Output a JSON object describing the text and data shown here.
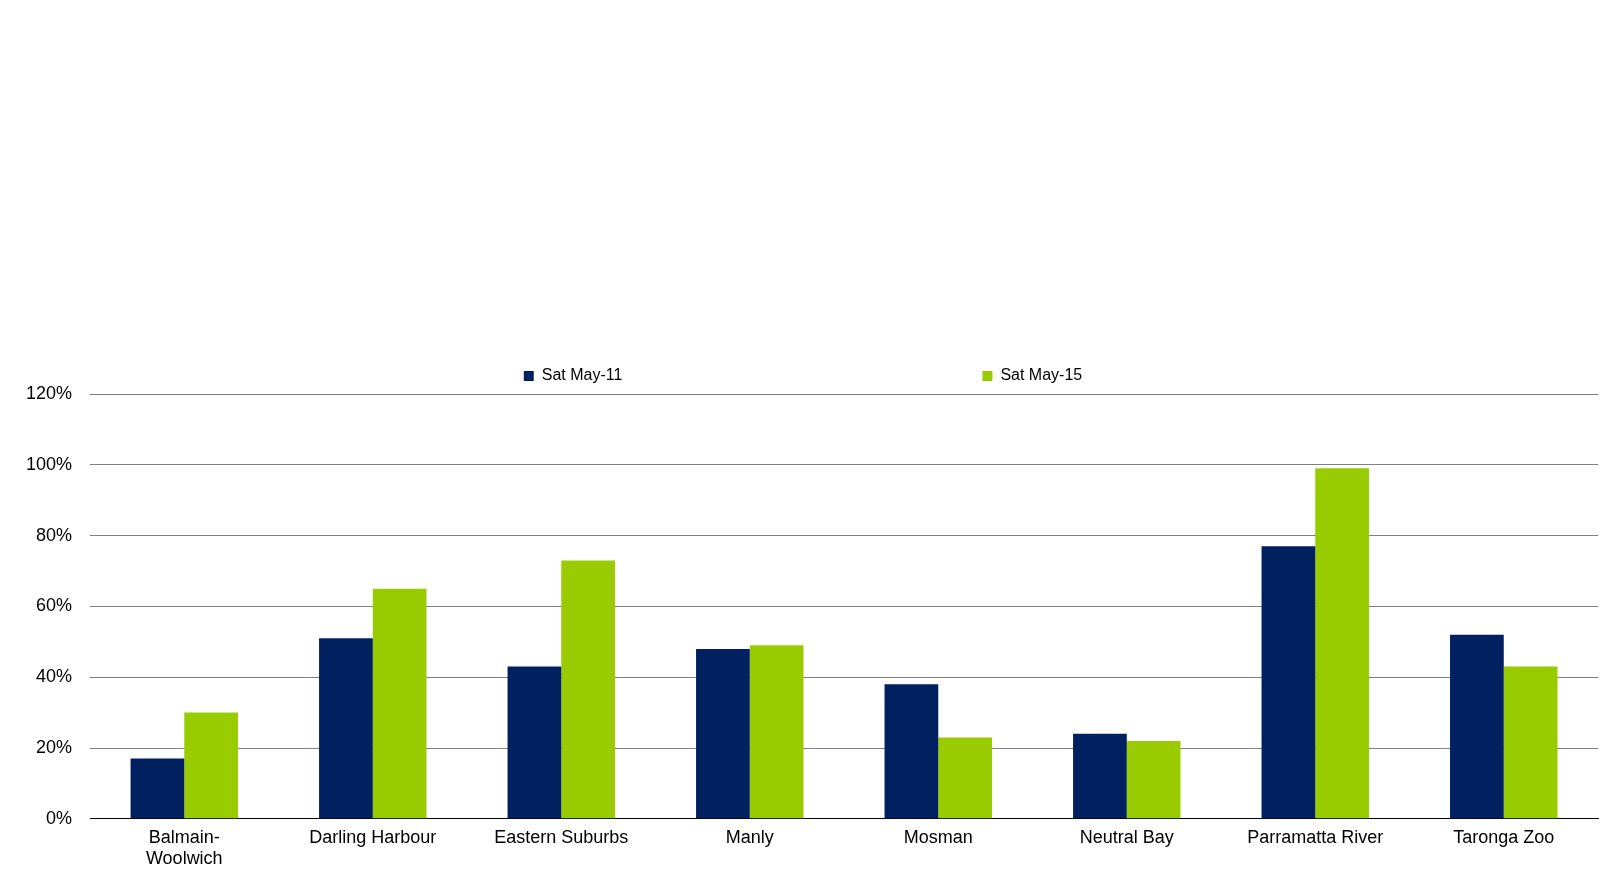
{
  "chart_data": {
    "type": "bar",
    "categories": [
      "Balmain-Woolwich",
      "Darling Harbour",
      "Eastern Suburbs",
      "Manly",
      "Mosman",
      "Neutral Bay",
      "Parramatta River",
      "Taronga Zoo"
    ],
    "series": [
      {
        "name": "Sat May-11",
        "color": "#002060",
        "values": [
          17,
          51,
          43,
          48,
          38,
          24,
          77,
          52
        ]
      },
      {
        "name": "Sat May-15",
        "color": "#99cc00",
        "values": [
          30,
          65,
          73,
          49,
          23,
          22,
          99,
          43
        ]
      }
    ],
    "ylim": [
      0,
      120
    ],
    "yticks": [
      {
        "value": 0,
        "label": "0%"
      },
      {
        "value": 20,
        "label": "20%"
      },
      {
        "value": 40,
        "label": "40%"
      },
      {
        "value": 60,
        "label": "60%"
      },
      {
        "value": 80,
        "label": "80%"
      },
      {
        "value": 100,
        "label": "100%"
      },
      {
        "value": 120,
        "label": "120%"
      }
    ],
    "grid": "y",
    "legend": "top"
  }
}
